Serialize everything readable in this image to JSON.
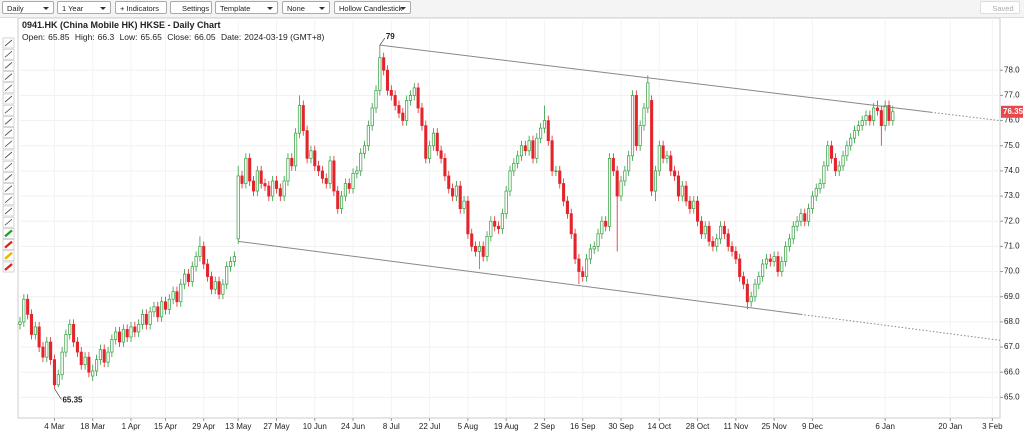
{
  "toolbar": {
    "interval": "Daily",
    "range": "1 Year",
    "indicators": "+ Indicators",
    "settings": "Settings",
    "template": "Template",
    "overlay": "None",
    "chart_style": "Hollow Candlestick",
    "saved": "Saved"
  },
  "chart_data": {
    "type": "candlestick",
    "title": "0941.HK (China Mobile HK) HKSE - Daily Chart",
    "header": {
      "open_label": "Open:",
      "high_label": "High:",
      "low_label": "Low:",
      "close_label": "Close:",
      "date_label": "Date:",
      "date": "2024-03-19 (GMT+8)"
    },
    "up_color": "#2e9e3a",
    "down_color": "#e3242b",
    "grid": true,
    "xlim": [
      0,
      256
    ],
    "ylim": [
      64.3,
      79.6
    ],
    "xticks": [
      {
        "value": 9,
        "label": "4 Mar"
      },
      {
        "value": 19,
        "label": "18 Mar"
      },
      {
        "value": 29,
        "label": "1 Apr"
      },
      {
        "value": 38,
        "label": "15 Apr"
      },
      {
        "value": 48,
        "label": "29 Apr"
      },
      {
        "value": 57,
        "label": "13 May"
      },
      {
        "value": 67,
        "label": "27 May"
      },
      {
        "value": 77,
        "label": "10 Jun"
      },
      {
        "value": 87,
        "label": "24 Jun"
      },
      {
        "value": 97,
        "label": "8 Jul"
      },
      {
        "value": 107,
        "label": "22 Jul"
      },
      {
        "value": 117,
        "label": "5 Aug"
      },
      {
        "value": 127,
        "label": "19 Aug"
      },
      {
        "value": 137,
        "label": "2 Sep"
      },
      {
        "value": 147,
        "label": "16 Sep"
      },
      {
        "value": 157,
        "label": "30 Sep"
      },
      {
        "value": 167,
        "label": "14 Oct"
      },
      {
        "value": 177,
        "label": "28 Oct"
      },
      {
        "value": 187,
        "label": "11 Nov"
      },
      {
        "value": 197,
        "label": "25 Nov"
      },
      {
        "value": 207,
        "label": "9 Dec"
      },
      {
        "value": 226,
        "label": "6 Jan"
      },
      {
        "value": 243,
        "label": "20 Jan"
      },
      {
        "value": 254,
        "label": "3 Feb"
      }
    ],
    "yticks": [
      {
        "value": 65,
        "label": "65.0"
      },
      {
        "value": 66,
        "label": "66.0"
      },
      {
        "value": 67,
        "label": "67.0"
      },
      {
        "value": 68,
        "label": "68.0"
      },
      {
        "value": 69,
        "label": "69.0"
      },
      {
        "value": 70,
        "label": "70.0"
      },
      {
        "value": 71,
        "label": "71.0"
      },
      {
        "value": 72,
        "label": "72.0"
      },
      {
        "value": 73,
        "label": "73.0"
      },
      {
        "value": 74,
        "label": "74.0"
      },
      {
        "value": 75,
        "label": "75.0"
      },
      {
        "value": 76,
        "label": "76.0"
      },
      {
        "value": 77,
        "label": "77.0"
      },
      {
        "value": 78,
        "label": "78.0"
      }
    ],
    "open": [
      67.9,
      68.0,
      68.9,
      68.3,
      67.5,
      67.8,
      67.0,
      66.6,
      67.2,
      66.5,
      65.5,
      65.9,
      66.8,
      67.5,
      67.9,
      67.2,
      66.8,
      66.3,
      66.6,
      65.85,
      66.05,
      66.5,
      66.9,
      66.4,
      66.8,
      67.3,
      67.6,
      67.2,
      67.7,
      67.4,
      67.8,
      67.6,
      67.9,
      68.3,
      67.9,
      68.4,
      68.6,
      68.2,
      68.8,
      68.5,
      68.9,
      69.2,
      68.8,
      69.5,
      69.9,
      69.6,
      70.2,
      70.6,
      71.0,
      70.3,
      69.8,
      69.3,
      69.6,
      69.1,
      69.5,
      70.2,
      70.4,
      71.3,
      73.8,
      73.5,
      74.5,
      73.6,
      73.2,
      74.0,
      73.5,
      73.4,
      73.0,
      73.6,
      73.3,
      73.0,
      73.6,
      74.5,
      74.2,
      75.5,
      76.6,
      75.6,
      74.5,
      74.8,
      74.2,
      74.0,
      73.7,
      73.5,
      74.4,
      73.2,
      72.5,
      73.0,
      73.5,
      73.3,
      73.9,
      74.0,
      74.7,
      75.0,
      75.8,
      76.5,
      77.2,
      78.5,
      78.0,
      77.2,
      77.0,
      76.6,
      76.3,
      76.0,
      76.8,
      77.0,
      77.3,
      76.5,
      75.8,
      74.5,
      75.0,
      75.5,
      74.8,
      74.5,
      73.8,
      73.3,
      73.0,
      73.4,
      72.5,
      72.8,
      71.5,
      71.0,
      70.8,
      71.0,
      70.6,
      71.4,
      72.0,
      71.8,
      71.7,
      72.3,
      73.2,
      74.0,
      74.3,
      74.6,
      75.0,
      74.8,
      75.2,
      74.5,
      75.3,
      75.7,
      76.0,
      75.2,
      74.0,
      74.0,
      73.5,
      72.8,
      72.3,
      71.5,
      70.5,
      70.0,
      69.8,
      70.5,
      70.9,
      71.0,
      71.5,
      72.0,
      71.8,
      74.5,
      74.0,
      73.0,
      73.6,
      74.0,
      74.6,
      77.0,
      75.0,
      75.8,
      76.5,
      76.8,
      73.2,
      74.0,
      75.0,
      74.5,
      74.6,
      74.0,
      73.8,
      73.0,
      73.4,
      72.8,
      72.5,
      72.8,
      72.0,
      71.5,
      71.8,
      71.2,
      71.0,
      71.3,
      71.8,
      71.5,
      71.0,
      70.8,
      70.5,
      69.8,
      69.5,
      68.8,
      69.0,
      69.5,
      69.8,
      70.3,
      70.5,
      70.4,
      70.6,
      70.0,
      70.4,
      71.0,
      71.3,
      71.8,
      72.0,
      72.3,
      72.0,
      72.5,
      73.0,
      73.3,
      73.5,
      74.2,
      75.0,
      74.5,
      74.0,
      74.2,
      74.6,
      75.0,
      75.3,
      75.6,
      75.8,
      76.0,
      76.2,
      76.0,
      76.5,
      76.4,
      75.8,
      76.6,
      76.0
    ],
    "high": [
      68.2,
      69.1,
      69.1,
      68.5,
      68.0,
      68.0,
      67.2,
      67.4,
      67.4,
      66.7,
      66.1,
      67.0,
      67.7,
      68.1,
      68.1,
      67.4,
      67.0,
      66.8,
      66.8,
      66.3,
      66.7,
      67.1,
      67.1,
      67.0,
      67.5,
      67.8,
      67.8,
      67.9,
      67.9,
      68.0,
      68.0,
      68.1,
      68.5,
      68.5,
      68.6,
      68.8,
      68.8,
      69.0,
      69.0,
      69.1,
      69.4,
      69.4,
      69.7,
      70.1,
      70.1,
      70.4,
      70.8,
      71.4,
      71.2,
      70.5,
      70.0,
      69.8,
      69.8,
      69.7,
      70.4,
      70.6,
      70.8,
      74.2,
      74.0,
      74.7,
      74.7,
      73.8,
      74.2,
      74.2,
      73.7,
      73.6,
      73.8,
      73.8,
      73.5,
      73.8,
      74.7,
      74.7,
      75.7,
      77.0,
      76.8,
      75.8,
      75.0,
      75.0,
      74.4,
      74.2,
      73.9,
      74.6,
      74.6,
      73.4,
      73.2,
      73.7,
      73.7,
      74.1,
      74.2,
      74.9,
      75.2,
      76.0,
      76.7,
      77.4,
      79,
      78.7,
      78.2,
      77.4,
      77.2,
      76.8,
      76.5,
      77.0,
      77.2,
      77.5,
      77.5,
      76.7,
      76.0,
      75.2,
      75.7,
      75.7,
      75.0,
      74.7,
      74.0,
      73.5,
      73.6,
      73.6,
      73.0,
      73.0,
      71.7,
      71.2,
      71.2,
      71.2,
      71.6,
      72.2,
      72.2,
      72.0,
      72.5,
      73.4,
      74.2,
      74.5,
      74.8,
      75.2,
      75.2,
      75.4,
      75.4,
      75.5,
      75.9,
      76.6,
      76.2,
      75.4,
      74.2,
      74.2,
      73.7,
      73.0,
      72.5,
      71.7,
      70.7,
      70.2,
      70.7,
      71.1,
      71.2,
      71.7,
      72.2,
      72.2,
      74.7,
      74.7,
      74.2,
      73.8,
      74.2,
      74.8,
      77.2,
      77.2,
      76.0,
      76.7,
      77.8,
      77.0,
      74.2,
      75.2,
      75.2,
      74.8,
      74.8,
      74.2,
      74.0,
      73.6,
      73.6,
      73.0,
      73.0,
      73.0,
      72.2,
      72.0,
      72.0,
      71.4,
      71.5,
      72.0,
      72.0,
      71.7,
      71.2,
      71.0,
      70.7,
      70.0,
      69.7,
      69.2,
      69.7,
      70.0,
      70.5,
      70.7,
      70.7,
      70.8,
      70.8,
      70.6,
      71.2,
      71.5,
      72.0,
      72.2,
      72.5,
      72.5,
      72.7,
      73.2,
      73.5,
      73.7,
      74.4,
      75.2,
      75.2,
      74.7,
      74.4,
      74.8,
      75.2,
      75.5,
      75.8,
      76.0,
      76.2,
      76.4,
      76.4,
      76.7,
      76.8,
      76.6,
      76.8,
      76.8,
      76.6
    ],
    "low": [
      67.7,
      67.8,
      68.1,
      67.3,
      67.3,
      66.8,
      66.4,
      66.4,
      66.3,
      65.35,
      65.4,
      65.7,
      66.6,
      67.3,
      67.0,
      66.6,
      66.1,
      66.1,
      65.8,
      65.65,
      65.85,
      66.3,
      66.2,
      66.2,
      66.6,
      67.1,
      67.0,
      67.0,
      67.2,
      67.2,
      67.4,
      67.4,
      67.7,
      67.7,
      67.7,
      68.2,
      68.0,
      68.0,
      68.3,
      68.3,
      68.7,
      68.6,
      68.6,
      69.3,
      69.4,
      69.4,
      70.0,
      70.4,
      70.1,
      69.6,
      69.1,
      69.1,
      68.9,
      68.9,
      69.3,
      70.0,
      70.2,
      71.1,
      73.3,
      73.3,
      73.4,
      73.0,
      73.0,
      73.3,
      73.2,
      72.8,
      72.8,
      73.1,
      72.8,
      72.8,
      73.4,
      74.0,
      74.0,
      75.3,
      75.4,
      74.3,
      74.3,
      74.0,
      73.8,
      73.5,
      73.3,
      73.3,
      73.0,
      72.3,
      72.3,
      72.8,
      73.1,
      73.1,
      73.7,
      73.8,
      74.5,
      74.8,
      75.6,
      76.3,
      77.0,
      77.8,
      77.0,
      76.8,
      76.4,
      76.1,
      75.8,
      75.8,
      76.6,
      76.8,
      76.3,
      75.6,
      74.3,
      74.3,
      74.8,
      74.6,
      74.3,
      73.6,
      73.1,
      72.8,
      72.8,
      72.3,
      72.3,
      71.3,
      70.8,
      70.6,
      70.1,
      70.4,
      70.4,
      71.2,
      71.6,
      71.5,
      71.5,
      72.1,
      73.0,
      73.8,
      74.1,
      74.4,
      74.6,
      74.6,
      74.3,
      74.3,
      75.1,
      75.5,
      75.0,
      73.8,
      73.8,
      73.3,
      72.6,
      72.1,
      71.3,
      70.3,
      69.5,
      69.6,
      69.6,
      70.3,
      70.7,
      70.8,
      71.3,
      71.6,
      71.6,
      73.8,
      70.8,
      72.8,
      73.4,
      73.8,
      74.4,
      74.8,
      74.8,
      75.6,
      76.3,
      73.0,
      72.8,
      73.8,
      74.3,
      74.3,
      73.8,
      73.6,
      72.8,
      72.8,
      72.6,
      72.3,
      72.3,
      71.8,
      71.3,
      71.3,
      71.0,
      70.8,
      70.8,
      71.1,
      71.3,
      70.8,
      70.6,
      70.3,
      69.6,
      69.3,
      68.5,
      68.6,
      68.8,
      69.3,
      69.6,
      70.1,
      70.2,
      70.2,
      69.8,
      69.8,
      70.2,
      70.8,
      71.1,
      71.6,
      71.8,
      71.8,
      71.8,
      72.3,
      72.8,
      73.1,
      73.3,
      74.0,
      74.3,
      73.8,
      73.8,
      74.0,
      74.4,
      74.8,
      75.1,
      75.4,
      75.6,
      75.8,
      75.8,
      75.8,
      76.2,
      75.0,
      75.6,
      75.8,
      75.8
    ],
    "close": [
      68.0,
      68.9,
      68.3,
      67.5,
      67.8,
      67.0,
      66.6,
      67.2,
      66.5,
      65.5,
      65.9,
      66.8,
      67.5,
      67.9,
      67.2,
      66.8,
      66.3,
      66.6,
      66.0,
      66.05,
      66.5,
      66.9,
      66.4,
      66.8,
      67.3,
      67.6,
      67.2,
      67.7,
      67.4,
      67.8,
      67.6,
      67.9,
      68.3,
      67.9,
      68.4,
      68.6,
      68.2,
      68.8,
      68.5,
      68.9,
      69.2,
      68.8,
      69.5,
      69.9,
      69.6,
      70.2,
      70.6,
      71.0,
      70.3,
      69.8,
      69.3,
      69.6,
      69.1,
      69.5,
      70.2,
      70.4,
      70.6,
      73.8,
      73.5,
      74.5,
      73.6,
      73.2,
      74.0,
      73.5,
      73.4,
      73.0,
      73.6,
      73.3,
      73.0,
      73.6,
      74.5,
      74.2,
      75.5,
      76.6,
      75.6,
      74.5,
      74.8,
      74.2,
      74.0,
      73.7,
      73.5,
      74.4,
      73.2,
      72.5,
      73.0,
      73.5,
      73.3,
      73.9,
      74.0,
      74.7,
      75.0,
      75.8,
      76.5,
      77.2,
      78.5,
      78.0,
      77.2,
      77.0,
      76.6,
      76.3,
      76.0,
      76.8,
      77.0,
      77.3,
      76.5,
      75.8,
      74.5,
      75.0,
      75.5,
      74.8,
      74.5,
      73.8,
      73.3,
      73.0,
      73.4,
      72.5,
      72.8,
      71.5,
      71.0,
      70.8,
      71.0,
      70.6,
      71.4,
      72.0,
      71.8,
      71.7,
      72.3,
      73.2,
      74.0,
      74.3,
      74.6,
      75.0,
      74.8,
      75.2,
      74.5,
      75.3,
      75.7,
      76.0,
      75.2,
      74.0,
      74.0,
      73.5,
      72.8,
      72.3,
      71.5,
      70.5,
      70.0,
      69.8,
      70.5,
      70.9,
      71.0,
      71.5,
      72.0,
      71.8,
      74.5,
      74.0,
      73.0,
      73.6,
      74.0,
      74.6,
      77.0,
      75.0,
      75.8,
      76.5,
      77.5,
      73.2,
      74.0,
      75.0,
      74.5,
      74.6,
      74.0,
      73.8,
      73.0,
      73.4,
      72.8,
      72.5,
      72.8,
      72.0,
      71.5,
      71.8,
      71.2,
      71.0,
      71.3,
      71.8,
      71.5,
      71.0,
      70.8,
      70.5,
      69.8,
      69.5,
      68.8,
      69.0,
      69.5,
      69.8,
      70.3,
      70.5,
      70.4,
      70.6,
      70.0,
      70.4,
      71.0,
      71.3,
      71.8,
      72.0,
      72.3,
      72.0,
      72.5,
      73.0,
      73.3,
      73.5,
      74.2,
      75.0,
      74.5,
      74.0,
      74.2,
      74.6,
      75.0,
      75.3,
      75.6,
      75.8,
      76.0,
      76.2,
      76.0,
      76.5,
      76.4,
      75.8,
      76.6,
      76.0,
      76.35
    ],
    "trendlines": [
      {
        "style": "solid",
        "x": [
          94,
          238
        ],
        "y": [
          79,
          76.33
        ]
      },
      {
        "style": "dotted",
        "x": [
          238,
          256
        ],
        "y": [
          76.33,
          76.0
        ]
      },
      {
        "style": "solid",
        "x": [
          57,
          204
        ],
        "y": [
          71.2,
          68.3
        ]
      },
      {
        "style": "dotted",
        "x": [
          204,
          256
        ],
        "y": [
          68.3,
          67.27
        ]
      }
    ]
  }
}
